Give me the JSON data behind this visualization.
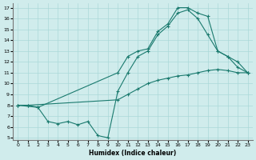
{
  "xlabel": "Humidex (Indice chaleur)",
  "bg_color": "#d0ecec",
  "grid_color": "#aad8d8",
  "line_color": "#1a7a6e",
  "xlim": [
    -0.5,
    23.5
  ],
  "ylim": [
    4.8,
    17.4
  ],
  "xticks": [
    0,
    1,
    2,
    3,
    4,
    5,
    6,
    7,
    8,
    9,
    10,
    11,
    12,
    13,
    14,
    15,
    16,
    17,
    18,
    19,
    20,
    21,
    22,
    23
  ],
  "yticks": [
    5,
    6,
    7,
    8,
    9,
    10,
    11,
    12,
    13,
    14,
    15,
    16,
    17
  ],
  "line1_x": [
    0,
    1,
    2,
    10,
    11,
    12,
    13,
    14,
    15,
    16,
    17,
    18,
    19,
    20,
    21,
    22,
    23
  ],
  "line1_y": [
    8,
    8,
    7.8,
    11.0,
    12.5,
    13.0,
    13.2,
    14.8,
    15.5,
    17.0,
    17.0,
    16.5,
    16.2,
    13.0,
    12.5,
    11.5,
    11.0
  ],
  "line2_x": [
    0,
    1,
    10,
    11,
    12,
    13,
    14,
    15,
    16,
    17,
    18,
    19,
    20,
    21,
    22,
    23
  ],
  "line2_y": [
    8,
    8,
    8.5,
    9.0,
    9.5,
    10.0,
    10.3,
    10.5,
    10.7,
    10.8,
    11.0,
    11.2,
    11.3,
    11.2,
    11.0,
    11.0
  ],
  "line3_x": [
    0,
    2,
    3,
    4,
    5,
    6,
    7,
    8,
    9,
    10,
    11,
    12,
    13,
    14,
    15,
    16,
    17,
    18,
    19,
    20,
    21,
    22,
    23
  ],
  "line3_y": [
    8,
    7.8,
    6.5,
    6.3,
    6.5,
    6.2,
    6.5,
    5.2,
    5.0,
    9.3,
    11.0,
    12.5,
    13.0,
    14.5,
    15.3,
    16.5,
    16.8,
    16.0,
    14.5,
    13.0,
    12.5,
    12.0,
    11.0
  ]
}
